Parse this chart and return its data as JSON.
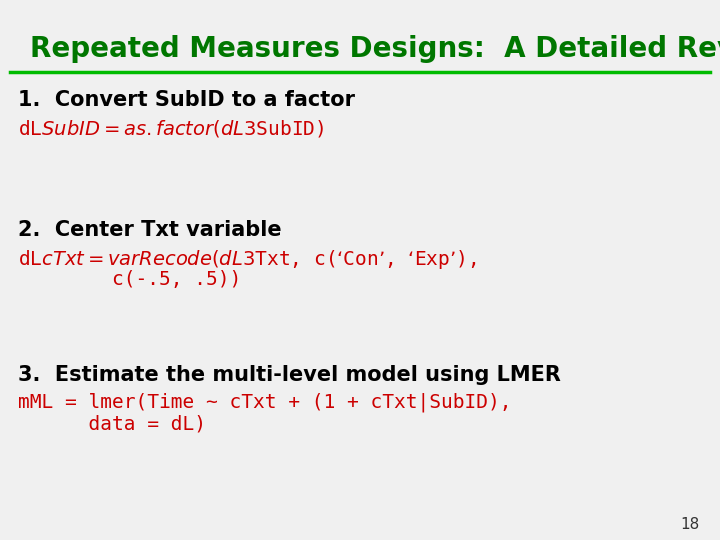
{
  "title": "Repeated Measures Designs:  A Detailed Review",
  "title_color": "#007700",
  "title_fontsize": 20,
  "line_color": "#00bb00",
  "bg_color": "#f0f0f0",
  "page_number": "18",
  "sections": [
    {
      "heading": "1.  Convert SubID to a factor",
      "heading_color": "#000000",
      "heading_fontsize": 15,
      "code_lines": [
        "dL$SubID = as.factor(dL3$SubID)"
      ],
      "code_color": "#cc0000",
      "code_fontsize": 14
    },
    {
      "heading": "2.  Center Txt variable",
      "heading_color": "#000000",
      "heading_fontsize": 15,
      "code_lines": [
        "dL$cTxt = varRecode(dL3$Txt, c(‘Con’, ‘Exp’),",
        "        c(-.5, .5))"
      ],
      "code_color": "#cc0000",
      "code_fontsize": 14
    },
    {
      "heading": "3.  Estimate the multi-level model using LMER",
      "heading_color": "#000000",
      "heading_fontsize": 15,
      "code_lines": [
        "mML = lmer(Time ~ cTxt + (1 + cTxt|SubID),",
        "      data = dL)"
      ],
      "code_color": "#cc0000",
      "code_fontsize": 14
    }
  ]
}
